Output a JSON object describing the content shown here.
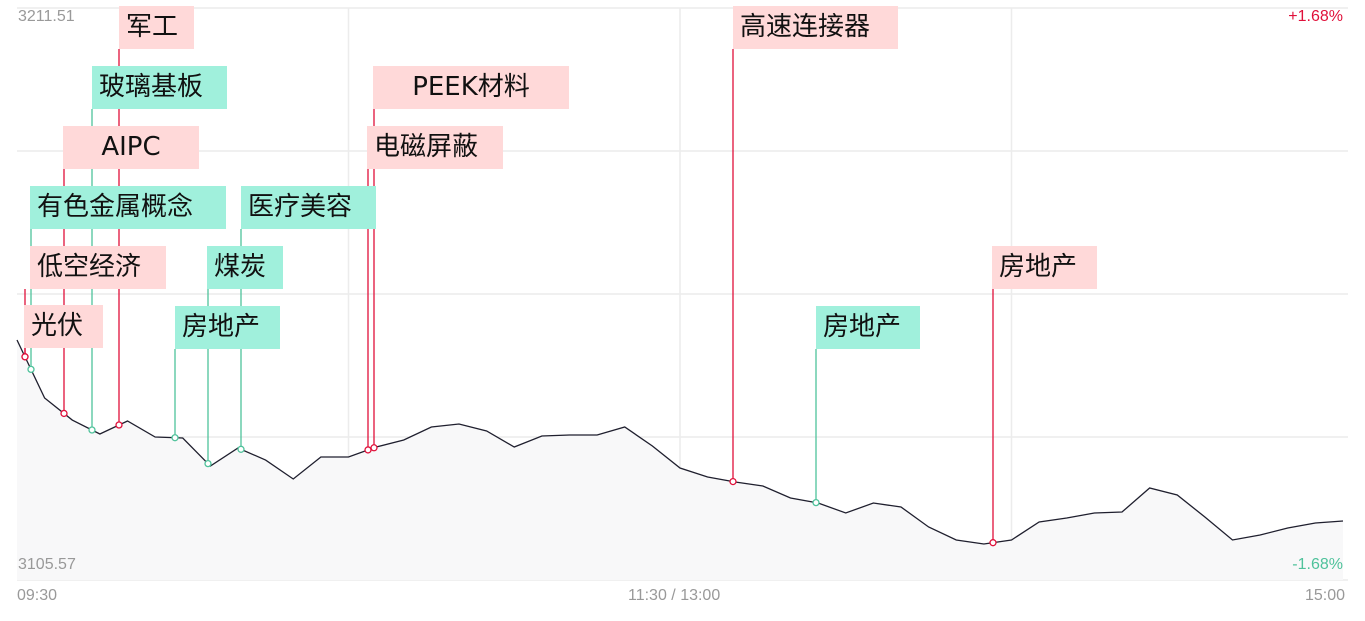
{
  "chart_data": {
    "type": "line",
    "y_top_label": "3211.51",
    "y_bottom_label": "3105.57",
    "pct_top_label": "+1.68%",
    "pct_bottom_label": "-1.68%",
    "ylim": [
      3105.57,
      3211.51
    ],
    "x_tick_labels": [
      "09:30",
      "11:30 / 13:00",
      "15:00"
    ],
    "grid": true,
    "colors": {
      "line": "#1f1f2e",
      "up": "#e0103a",
      "down": "#4fc29b",
      "up_bg": "#ffd9d9",
      "down_bg": "#a0f0dc",
      "grid": "#ececec",
      "area": "#f8f8f9"
    },
    "series": {
      "times": [
        "09:30",
        "09:35",
        "09:40",
        "09:45",
        "09:50",
        "09:55",
        "10:00",
        "10:05",
        "10:10",
        "10:15",
        "10:20",
        "10:25",
        "10:30",
        "10:35",
        "10:40",
        "10:45",
        "10:50",
        "10:55",
        "11:00",
        "11:05",
        "11:10",
        "11:15",
        "11:20",
        "11:25",
        "11:30",
        "13:05",
        "13:10",
        "13:15",
        "13:20",
        "13:25",
        "13:30",
        "13:35",
        "13:40",
        "13:45",
        "13:50",
        "13:55",
        "14:00",
        "14:05",
        "14:10",
        "14:15",
        "14:20",
        "14:25",
        "14:30",
        "14:35",
        "14:40",
        "14:45",
        "14:50",
        "14:55",
        "15:00"
      ],
      "values": [
        3150.02,
        3139.28,
        3135.2,
        3132.61,
        3135.02,
        3132.05,
        3131.87,
        3126.68,
        3130.02,
        3127.79,
        3124.28,
        3128.35,
        3128.35,
        3130.2,
        3131.5,
        3133.91,
        3134.46,
        3133.17,
        3130.2,
        3132.24,
        3132.43,
        3132.43,
        3133.91,
        3130.39,
        3126.31,
        3124.65,
        3123.72,
        3122.98,
        3120.76,
        3119.83,
        3117.98,
        3119.83,
        3119.09,
        3115.39,
        3112.98,
        3112.24,
        3112.98,
        3116.31,
        3117.05,
        3117.98,
        3118.16,
        3122.61,
        3121.31,
        3117.24,
        3112.98,
        3113.9,
        3115.2,
        3116.13,
        3116.5
      ]
    },
    "events": [
      {
        "label": "光伏",
        "direction": "up",
        "time": "09:31"
      },
      {
        "label": "有色金属概念",
        "direction": "down",
        "time": "09:32"
      },
      {
        "label": "低空经济",
        "direction": "up",
        "time": "09:31"
      },
      {
        "label": "玻璃基板",
        "direction": "down",
        "time": "09:43"
      },
      {
        "label": "AIPC",
        "direction": "up",
        "time": "09:38"
      },
      {
        "label": "军工",
        "direction": "up",
        "time": "09:48"
      },
      {
        "label": "房地产",
        "direction": "down",
        "time": "09:58"
      },
      {
        "label": "煤炭",
        "direction": "down",
        "time": "10:04"
      },
      {
        "label": "医疗美容",
        "direction": "down",
        "time": "10:10"
      },
      {
        "label": "电磁屏蔽",
        "direction": "up",
        "time": "10:33"
      },
      {
        "label": "PEEK材料",
        "direction": "up",
        "time": "10:34"
      },
      {
        "label": "高速连接器",
        "direction": "up",
        "time": "13:09"
      },
      {
        "label": "房地产",
        "direction": "down",
        "time": "13:24"
      },
      {
        "label": "房地产",
        "direction": "up",
        "time": "13:56"
      }
    ]
  }
}
